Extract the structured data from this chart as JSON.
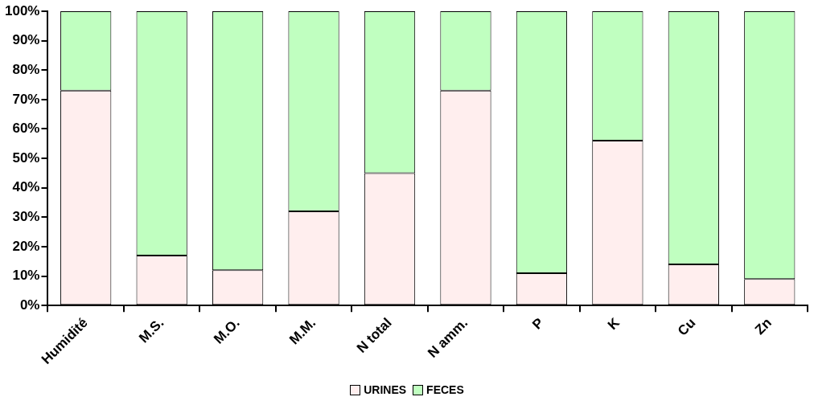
{
  "chart_data": {
    "type": "bar",
    "stacked": true,
    "categories": [
      "Humidité",
      "M.S.",
      "M.O.",
      "M.M.",
      "N total",
      "N amm.",
      "P",
      "K",
      "Cu",
      "Zn"
    ],
    "series": [
      {
        "name": "URINES",
        "color": "#ffeeee",
        "values": [
          73,
          17,
          12,
          32,
          45,
          73,
          11,
          56,
          14,
          9
        ]
      },
      {
        "name": "FECES",
        "color": "#c0ffc0",
        "values": [
          27,
          83,
          88,
          68,
          55,
          27,
          89,
          44,
          86,
          91
        ]
      }
    ],
    "ylim": [
      0,
      100
    ],
    "yticks": [
      {
        "value": 0,
        "label": "0%"
      },
      {
        "value": 10,
        "label": "10%"
      },
      {
        "value": 20,
        "label": "20%"
      },
      {
        "value": 30,
        "label": "30%"
      },
      {
        "value": 40,
        "label": "40%"
      },
      {
        "value": 50,
        "label": "50%"
      },
      {
        "value": 60,
        "label": "60%"
      },
      {
        "value": 70,
        "label": "70%"
      },
      {
        "value": 80,
        "label": "80%"
      },
      {
        "value": 90,
        "label": "90%"
      },
      {
        "value": 100,
        "label": "100%"
      }
    ],
    "grid": false,
    "legend": "bottom"
  }
}
